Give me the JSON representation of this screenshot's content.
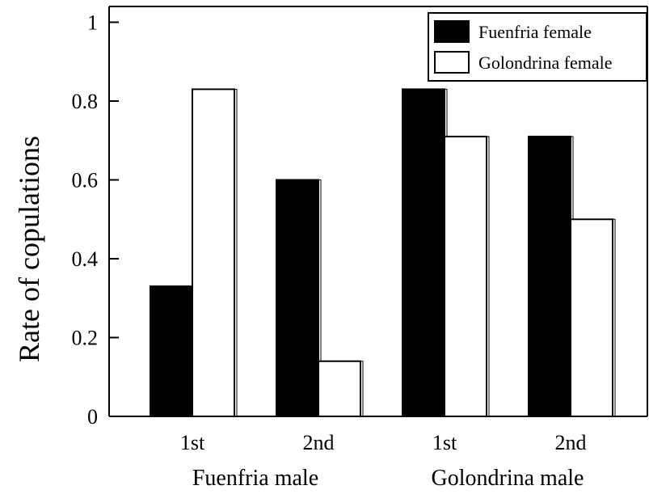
{
  "chart_data": {
    "type": "bar",
    "ylabel": "Rate of copulations",
    "ylim": [
      0,
      1.04
    ],
    "yticks": [
      0,
      0.2,
      0.4,
      0.6,
      0.8,
      1
    ],
    "ytick_labels": [
      "0",
      "0.2",
      "0.4",
      "0.6",
      "0.8",
      "1"
    ],
    "categories": [
      "1st",
      "2nd",
      "1st",
      "2nd"
    ],
    "groups": [
      {
        "label": "Fuenfria male",
        "categories": [
          "1st",
          "2nd"
        ]
      },
      {
        "label": "Golondrina male",
        "categories": [
          "1st",
          "2nd"
        ]
      }
    ],
    "series": [
      {
        "name": "Fuenfria female",
        "color": "#000000",
        "values": [
          0.33,
          0.6,
          0.83,
          0.71
        ]
      },
      {
        "name": "Golondrina female",
        "color": "#ffffff",
        "values": [
          0.83,
          0.14,
          0.71,
          0.5
        ]
      }
    ],
    "legend_position": "top-right",
    "grid": false
  }
}
